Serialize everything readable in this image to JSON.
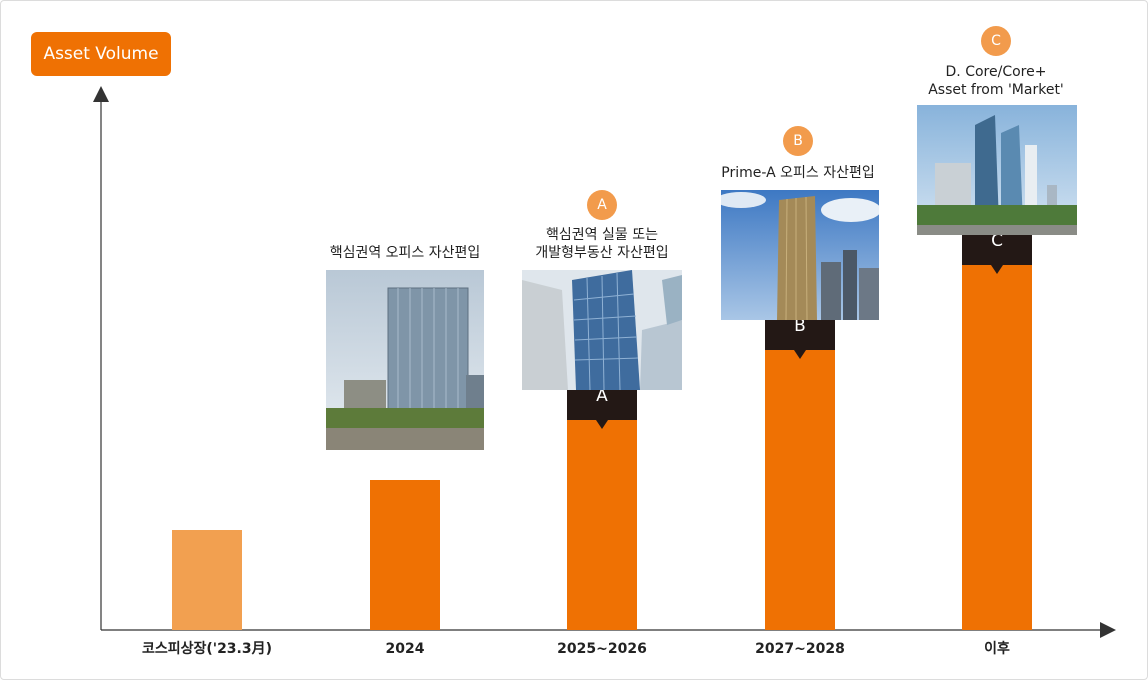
{
  "y_axis_label": "Asset Volume",
  "colors": {
    "bar": "#ef7103",
    "bar_light": "#f2a050",
    "cap": "#231815",
    "pin": "#f29b4c"
  },
  "chart_data": {
    "type": "bar",
    "categories": [
      "코스피상장('23.3月)",
      "2024",
      "2025~2026",
      "2027~2028",
      "이후"
    ],
    "values": [
      20,
      30,
      42,
      56,
      73
    ],
    "segments": [
      {
        "category": "2025~2026",
        "label": "A",
        "top_value": 42
      },
      {
        "category": "2027~2028",
        "label": "B",
        "top_value": 56
      },
      {
        "category": "이후",
        "label": "C",
        "top_value": 73
      }
    ],
    "ylim": [
      0,
      100
    ],
    "grid": false
  },
  "annotations": [
    {
      "category": "2024",
      "pin": "",
      "lines": [
        "핵심권역 오피스 자산편입"
      ]
    },
    {
      "category": "2025~2026",
      "pin": "A",
      "lines": [
        "핵심권역 실물 또는",
        "개발형부동산 자산편입"
      ]
    },
    {
      "category": "2027~2028",
      "pin": "B",
      "lines": [
        "Prime-A 오피스 자산편입"
      ]
    },
    {
      "category": "이후",
      "pin": "C",
      "lines": [
        "D. Core/Core+",
        "Asset from 'Market'"
      ]
    }
  ]
}
